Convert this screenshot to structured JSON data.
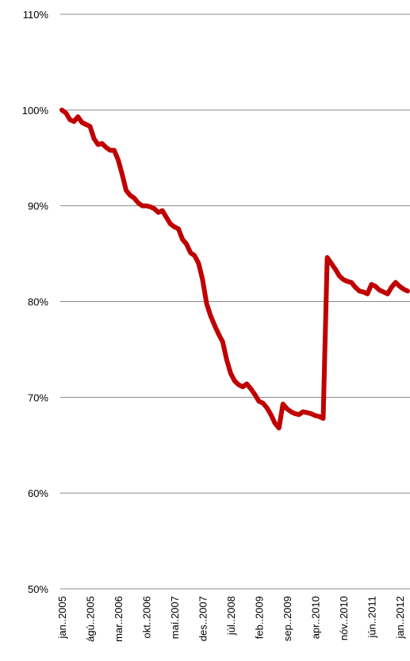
{
  "chart_data": {
    "type": "line",
    "title": "",
    "xlabel": "",
    "ylabel": "",
    "ylim": [
      50,
      110
    ],
    "yticks": [
      "50%",
      "60%",
      "70%",
      "80%",
      "90%",
      "100%",
      "110%"
    ],
    "ytick_values": [
      50,
      60,
      70,
      80,
      90,
      100,
      110
    ],
    "grid": true,
    "legend": "none",
    "line_color": "#C00000",
    "categories": [
      "jan..2005",
      "fe..2005",
      "ma..2005",
      "ap..2005",
      "maí..2005",
      "jún..2005",
      "júl..2005",
      "ágú..2005",
      "sep..2005",
      "okt..2005",
      "nóv..2005",
      "des..2005",
      "jan..2006",
      "feb..2006",
      "mar..2006",
      "apr..2006",
      "maí..2006",
      "jún..2006",
      "júl..2006",
      "ágú..2006",
      "sep..2006",
      "okt..2006",
      "nóv..2006",
      "des..2006",
      "jan..2007",
      "feb..2007",
      "mar..2007",
      "apr..2007",
      "maí..2007",
      "jún..2007",
      "júl..2007",
      "ágú..2007",
      "sep..2007",
      "okt..2007",
      "nóv..2007",
      "des..2007",
      "jan..2008",
      "feb..2008",
      "mar..2008",
      "apr..2008",
      "maí..2008",
      "jún..2008",
      "júl..2008",
      "ágú..2008",
      "sep..2008",
      "okt..2008",
      "nóv..2008",
      "des..2008",
      "jan..2009",
      "feb..2009",
      "mar..2009",
      "apr..2009",
      "maí..2009",
      "jún..2009",
      "júl..2009",
      "ágú..2009",
      "sep..2009",
      "okt..2009",
      "nóv..2009",
      "des..2009",
      "jan..2010",
      "feb..2010",
      "mar..2010",
      "apr..2010",
      "maí..2010",
      "jún..2010",
      "júl..2010",
      "ágú..2010",
      "sep..2010",
      "okt..2010",
      "nóv..2010",
      "des..2010",
      "jan..2011",
      "feb..2011",
      "mar..2011",
      "apr..2011",
      "maí..2011",
      "jún..2011",
      "júl..2011",
      "ágú..2011",
      "sep..2011",
      "okt..2011",
      "nóv..2011",
      "des..2011",
      "jan..2012",
      "feb..2012",
      "mar..2012"
    ],
    "xtick_labels": [
      {
        "label": "jan..2005",
        "index": 0
      },
      {
        "label": "ágú..2005",
        "index": 7
      },
      {
        "label": "mar..2006",
        "index": 14
      },
      {
        "label": "okt..2006",
        "index": 21
      },
      {
        "label": "maí.2007",
        "index": 28
      },
      {
        "label": "des..2007",
        "index": 35
      },
      {
        "label": "júl..2008",
        "index": 42
      },
      {
        "label": "feb..2009",
        "index": 49
      },
      {
        "label": "sep..2009",
        "index": 56
      },
      {
        "label": "apr..2010",
        "index": 63
      },
      {
        "label": "nóv..2010",
        "index": 70
      },
      {
        "label": "jún..2011",
        "index": 77
      },
      {
        "label": "jan..2012",
        "index": 84
      }
    ],
    "series": [
      {
        "values": [
          100.0,
          99.7,
          99.0,
          98.8,
          99.3,
          98.7,
          98.5,
          98.3,
          97.0,
          96.4,
          96.5,
          96.1,
          95.8,
          95.8,
          94.8,
          93.3,
          91.6,
          91.1,
          90.8,
          90.3,
          90.0,
          90.0,
          89.9,
          89.7,
          89.3,
          89.5,
          88.8,
          88.1,
          87.8,
          87.6,
          86.5,
          86.0,
          85.1,
          84.8,
          84.0,
          82.3,
          79.8,
          78.5,
          77.5,
          76.6,
          75.8,
          73.9,
          72.5,
          71.7,
          71.3,
          71.1,
          71.4,
          70.9,
          70.3,
          69.6,
          69.4,
          68.9,
          68.2,
          67.3,
          66.8,
          69.3,
          68.8,
          68.5,
          68.3,
          68.2,
          68.5,
          68.4,
          68.3,
          68.1,
          68.0,
          67.8,
          84.6,
          84.0,
          83.4,
          82.7,
          82.3,
          82.1,
          82.0,
          81.5,
          81.1,
          81.0,
          80.8,
          81.8,
          81.6,
          81.2,
          81.0,
          80.8,
          81.5,
          82.0,
          81.6,
          81.3,
          81.1
        ]
      }
    ]
  }
}
